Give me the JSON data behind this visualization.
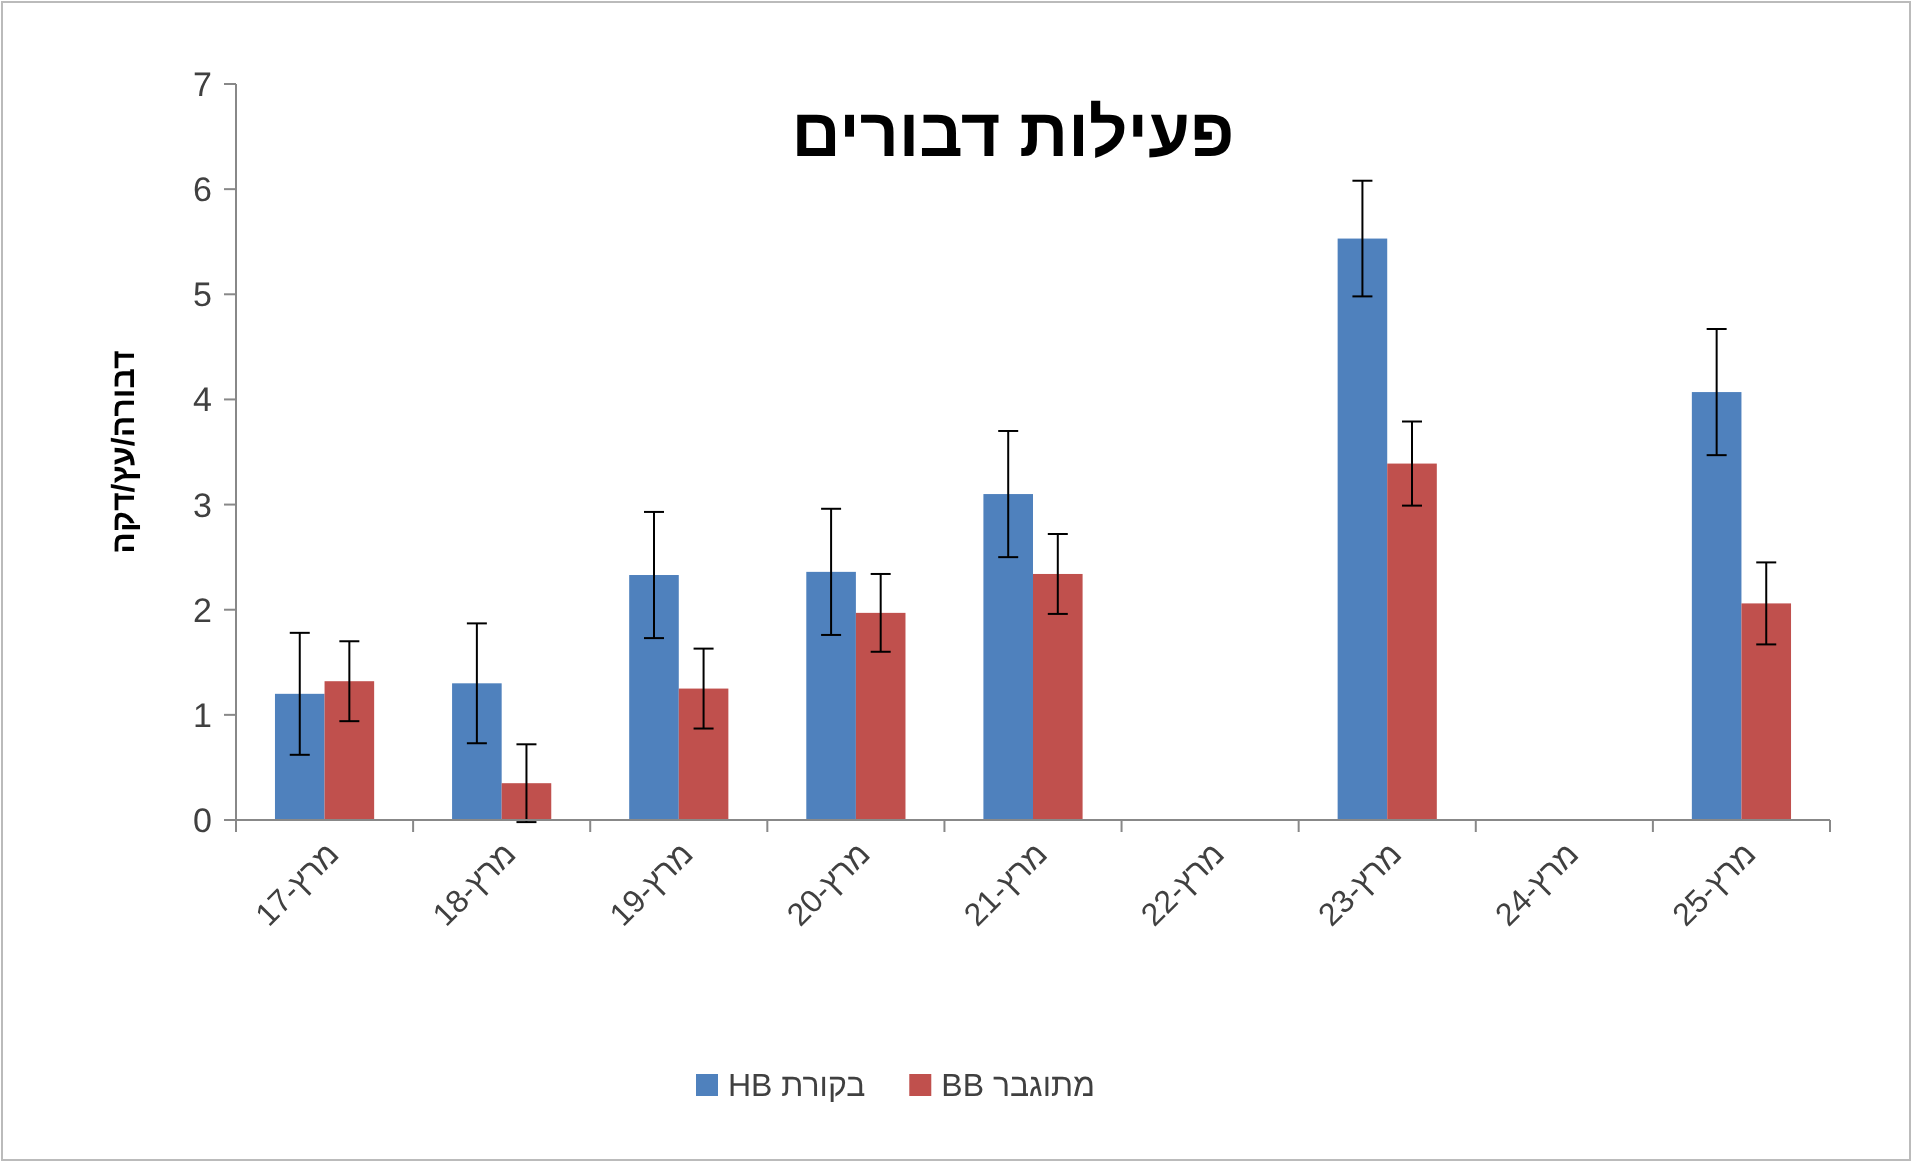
{
  "chart_data": {
    "type": "bar",
    "title": "פעילות דבורים",
    "ylabel": "דבורה/עץ/דקה",
    "categories": [
      "מרץ-17",
      "מרץ-18",
      "מרץ-19",
      "מרץ-20",
      "מרץ-21",
      "מרץ-22",
      "מרץ-23",
      "מרץ-24",
      "מרץ-25"
    ],
    "series": [
      {
        "name": "HB בקורת",
        "color": "#4f81bd",
        "values": [
          1.2,
          1.3,
          2.33,
          2.36,
          3.1,
          null,
          5.53,
          null,
          4.07
        ],
        "errors": [
          0.58,
          0.57,
          0.6,
          0.6,
          0.6,
          null,
          0.55,
          null,
          0.6
        ]
      },
      {
        "name": "BB מתוגבר",
        "color": "#c0504d",
        "values": [
          1.32,
          0.35,
          1.25,
          1.97,
          2.34,
          null,
          3.39,
          null,
          2.06
        ],
        "errors": [
          0.38,
          0.37,
          0.38,
          0.37,
          0.38,
          null,
          0.4,
          null,
          0.39
        ]
      }
    ],
    "ylim": [
      0,
      7
    ],
    "yticks": [
      0,
      1,
      2,
      3,
      4,
      5,
      6,
      7
    ],
    "grid": false,
    "legend": "bottom"
  }
}
